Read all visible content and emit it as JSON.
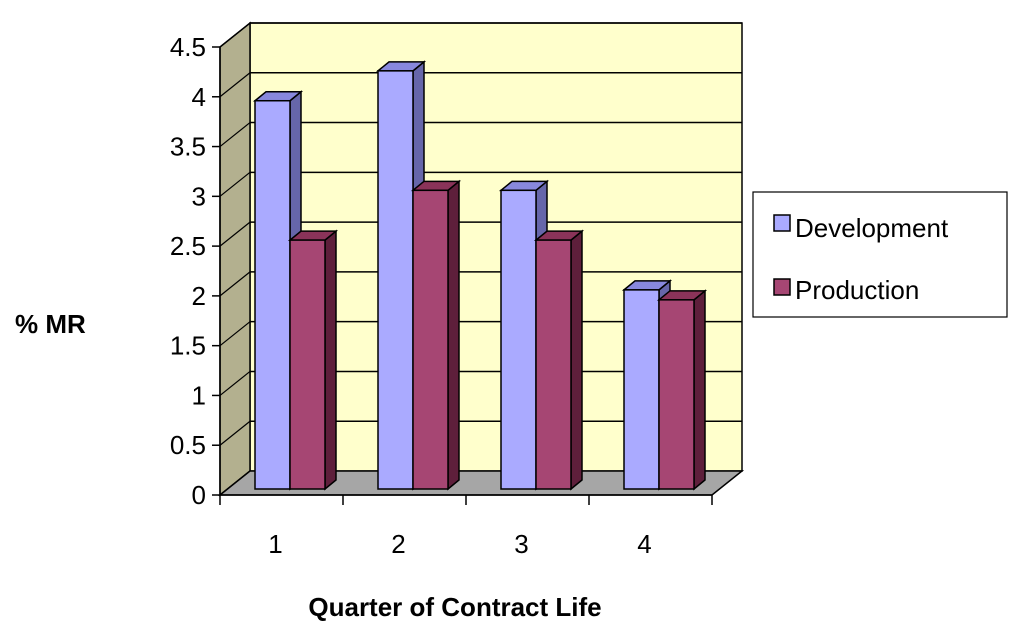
{
  "chart_data": {
    "type": "bar",
    "title": "",
    "xlabel": "Quarter of Contract Life",
    "ylabel": "% MR",
    "categories": [
      "1",
      "2",
      "3",
      "4"
    ],
    "series": [
      {
        "name": "Development",
        "values": [
          3.9,
          4.2,
          3.0,
          2.0
        ]
      },
      {
        "name": "Production",
        "values": [
          2.5,
          3.0,
          2.5,
          1.9
        ]
      }
    ],
    "ylim": [
      0,
      4.5
    ],
    "yticks": [
      "0",
      "0.5",
      "1",
      "1.5",
      "2",
      "2.5",
      "3",
      "3.5",
      "4",
      "4.5"
    ],
    "grid": true,
    "legend_position": "right",
    "style": "3d-column"
  },
  "colors": {
    "plot_background": "#ffffcc",
    "side_wall": "#b3b08f",
    "floor": "#a6a6a6",
    "series": [
      {
        "front": "#aaaaff",
        "top": "#8888dd",
        "side": "#6666aa"
      },
      {
        "front": "#a64673",
        "top": "#8a3359",
        "side": "#5e1f3b"
      }
    ]
  }
}
